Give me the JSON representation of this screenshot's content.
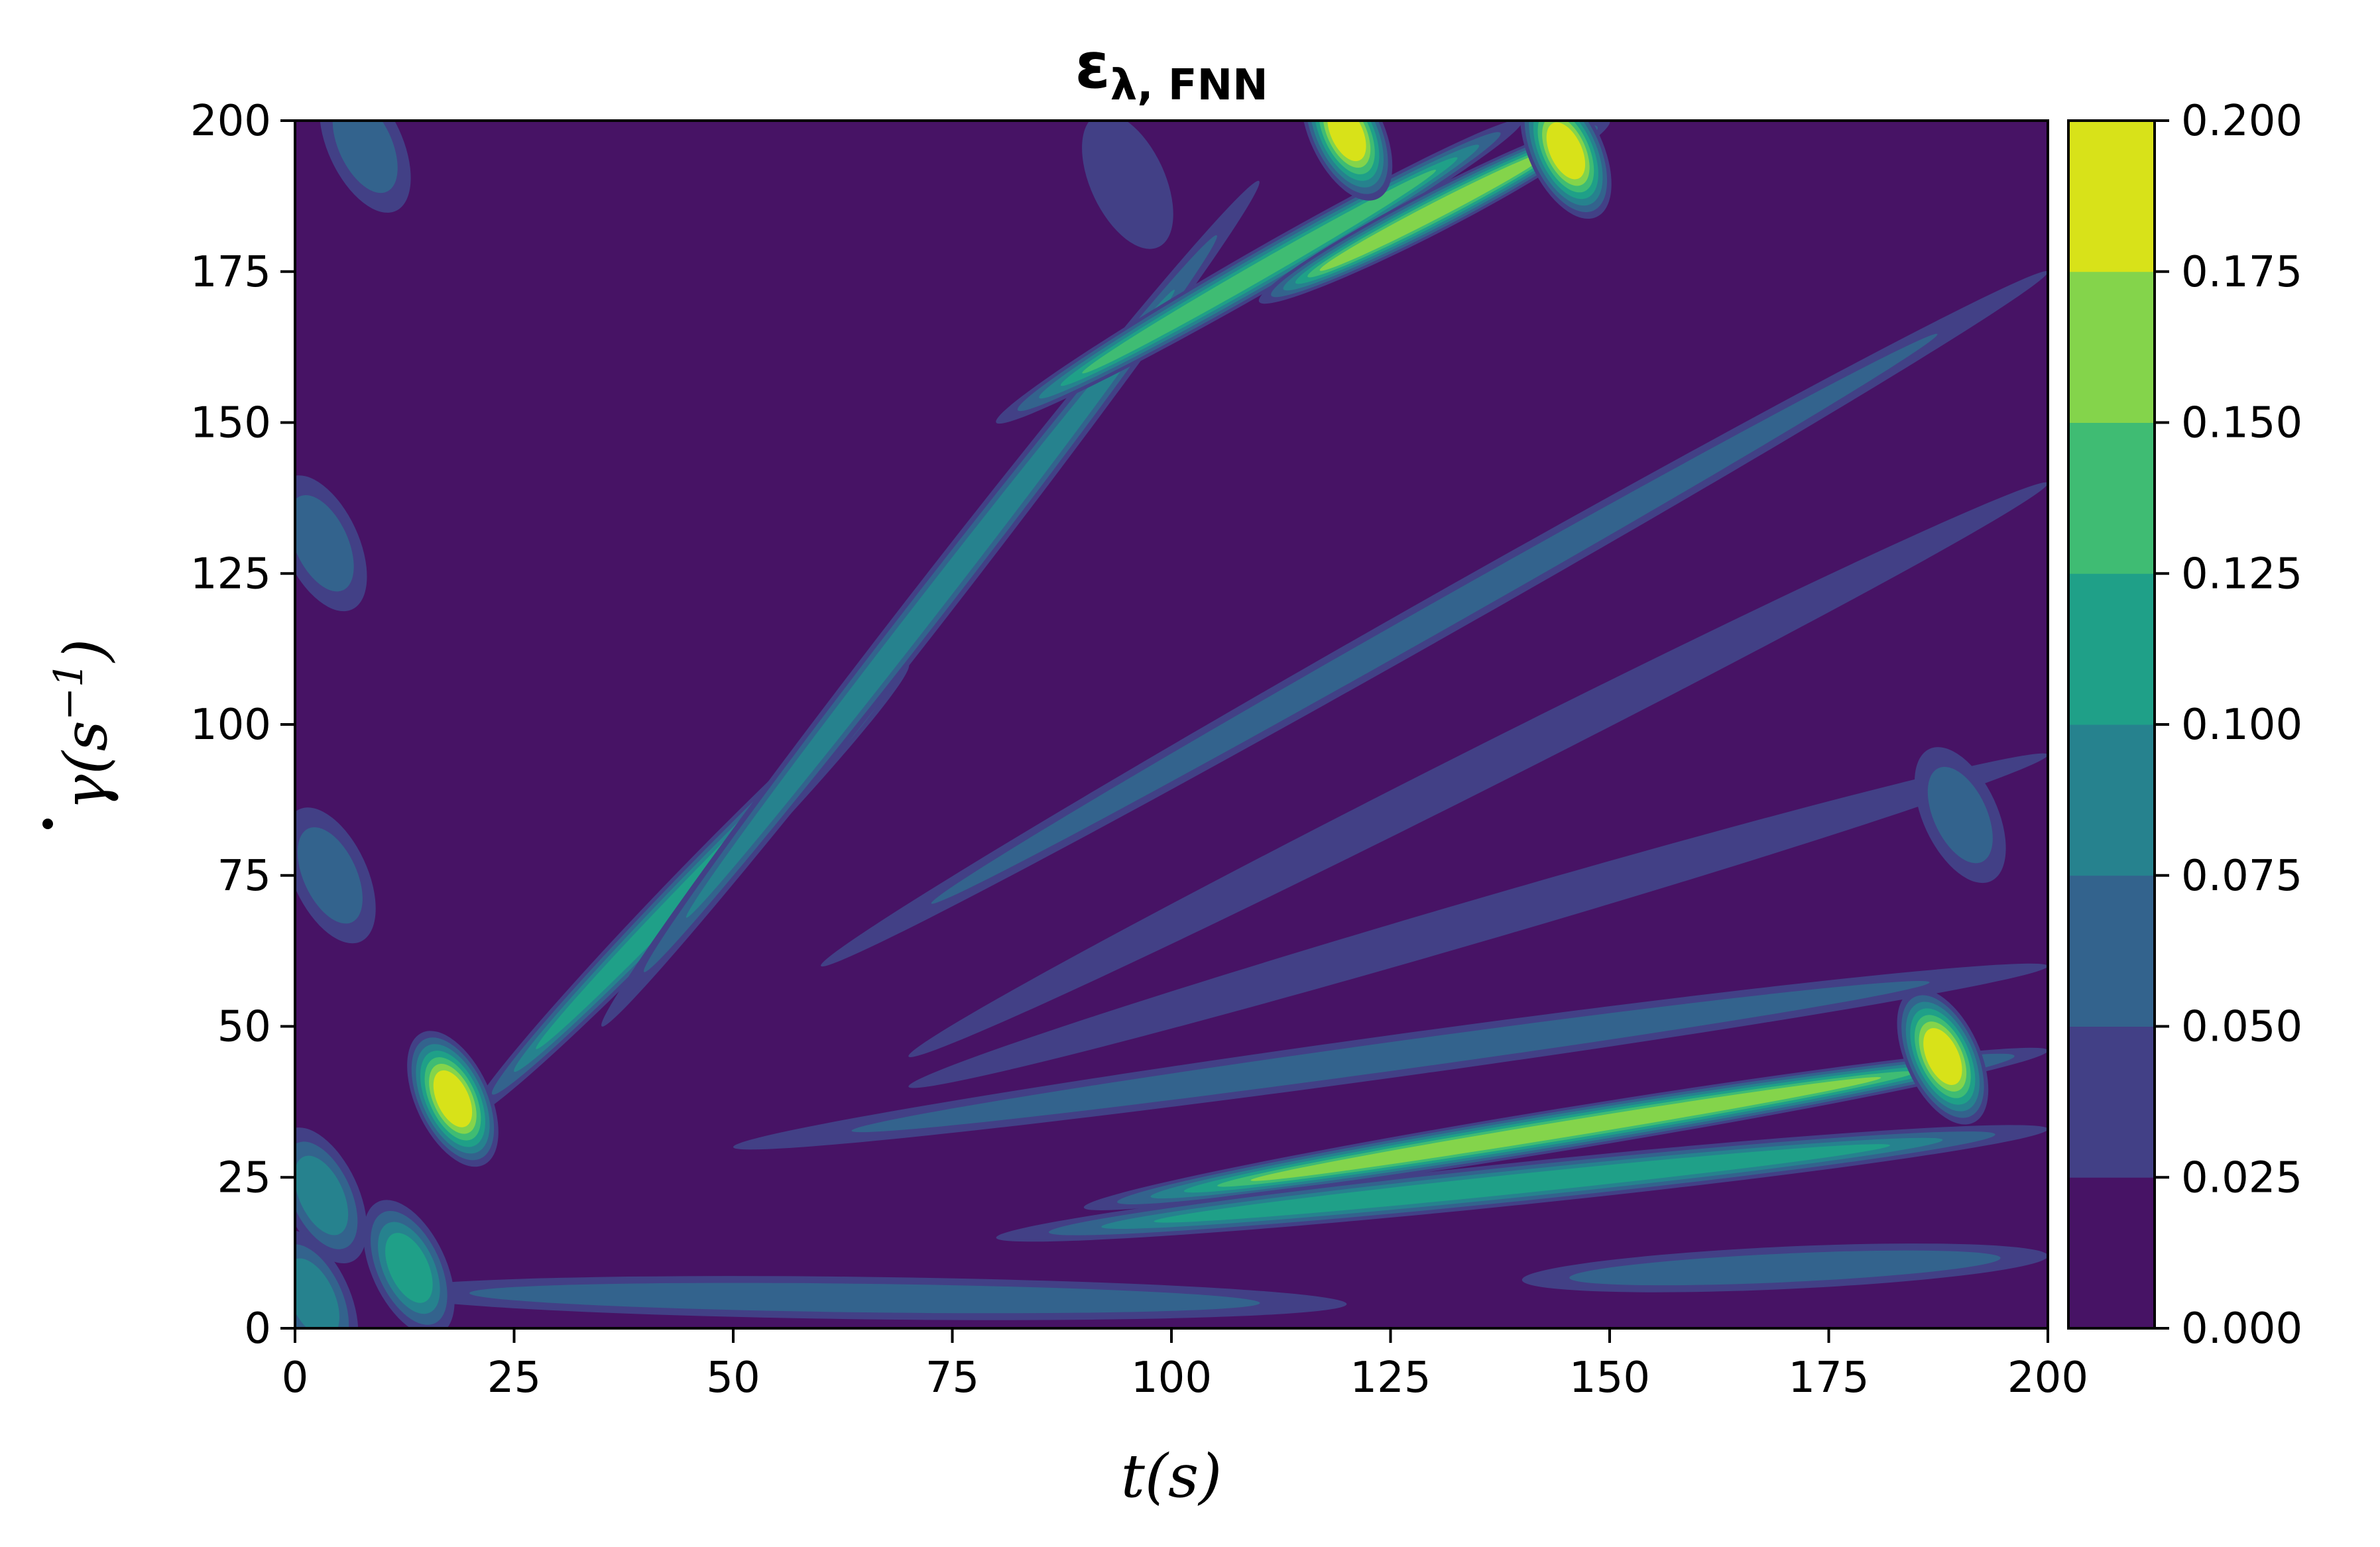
{
  "chart_data": {
    "type": "heatmap",
    "title_symbol": "ε",
    "title_subscript": "λ, FNN",
    "xlabel": "t(s)",
    "ylabel_dot_symbol": "γ",
    "ylabel_rest": "(s",
    "ylabel_exponent": "−1",
    "ylabel_close": ")",
    "xlim": [
      0,
      200
    ],
    "ylim": [
      0,
      200
    ],
    "x_ticks": [
      0,
      25,
      50,
      75,
      100,
      125,
      150,
      175,
      200
    ],
    "y_ticks": [
      0,
      25,
      50,
      75,
      100,
      125,
      150,
      175,
      200
    ],
    "colorbar": {
      "levels": [
        0.0,
        0.025,
        0.05,
        0.075,
        0.1,
        0.125,
        0.15,
        0.175,
        0.2
      ],
      "tick_labels": [
        "0.000",
        "0.025",
        "0.050",
        "0.075",
        "0.100",
        "0.125",
        "0.150",
        "0.175",
        "0.200"
      ],
      "colors": [
        "#471365",
        "#424086",
        "#33638d",
        "#26828e",
        "#1fa088",
        "#3fbc73",
        "#84d44b",
        "#d8e219"
      ]
    },
    "features": {
      "streaks": [
        {
          "x": [
            20,
            70
          ],
          "y": [
            35,
            110
          ],
          "value": 0.1
        },
        {
          "x": [
            35,
            110
          ],
          "y": [
            50,
            190
          ],
          "value": 0.09
        },
        {
          "x": [
            80,
            140
          ],
          "y": [
            150,
            200
          ],
          "value": 0.13
        },
        {
          "x": [
            110,
            150
          ],
          "y": [
            170,
            200
          ],
          "value": 0.17
        },
        {
          "x": [
            60,
            200
          ],
          "y": [
            60,
            175
          ],
          "value": 0.05
        },
        {
          "x": [
            70,
            200
          ],
          "y": [
            45,
            140
          ],
          "value": 0.045
        },
        {
          "x": [
            50,
            200
          ],
          "y": [
            30,
            60
          ],
          "value": 0.06
        },
        {
          "x": [
            90,
            200
          ],
          "y": [
            20,
            46
          ],
          "value": 0.17
        },
        {
          "x": [
            80,
            200
          ],
          "y": [
            15,
            33
          ],
          "value": 0.12
        },
        {
          "x": [
            10,
            120
          ],
          "y": [
            6,
            4
          ],
          "value": 0.07
        },
        {
          "x": [
            140,
            200
          ],
          "y": [
            8,
            12
          ],
          "value": 0.06
        },
        {
          "x": [
            70,
            200
          ],
          "y": [
            40,
            95
          ],
          "value": 0.04
        }
      ],
      "hotspots": [
        {
          "x": 18,
          "y": 38,
          "value": 0.19
        },
        {
          "x": 13,
          "y": 10,
          "value": 0.1
        },
        {
          "x": 2,
          "y": 5,
          "value": 0.09
        },
        {
          "x": 3,
          "y": 22,
          "value": 0.08
        },
        {
          "x": 188,
          "y": 45,
          "value": 0.18
        },
        {
          "x": 145,
          "y": 195,
          "value": 0.19
        },
        {
          "x": 120,
          "y": 198,
          "value": 0.18
        }
      ],
      "blobs": [
        {
          "x": 3,
          "y": 130,
          "value": 0.06
        },
        {
          "x": 4,
          "y": 75,
          "value": 0.07
        },
        {
          "x": 8,
          "y": 196,
          "value": 0.06
        },
        {
          "x": 95,
          "y": 190,
          "value": 0.04
        },
        {
          "x": 190,
          "y": 85,
          "value": 0.05
        }
      ]
    }
  }
}
